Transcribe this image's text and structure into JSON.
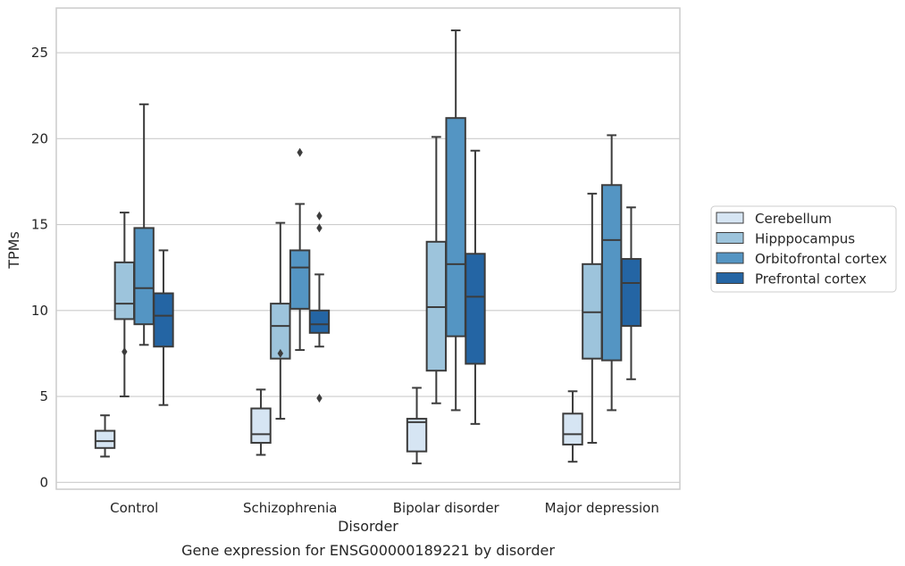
{
  "chart_data": {
    "type": "box",
    "title": "",
    "caption": "Gene expression for ENSG00000189221 by disorder",
    "xlabel": "Disorder",
    "ylabel": "TPMs",
    "ylim": [
      -0.4,
      27.6
    ],
    "yticks": [
      0,
      5,
      10,
      15,
      20,
      25
    ],
    "grid": "horizontal",
    "legend_position": "right",
    "categories": [
      "Control",
      "Schizophrenia",
      "Bipolar disorder",
      "Major depression"
    ],
    "series": [
      {
        "name": "Cerebellum",
        "color": "#d6e5f3",
        "boxes": [
          {
            "whislo": 1.5,
            "q1": 2.0,
            "med": 2.4,
            "q3": 3.0,
            "whishi": 3.9,
            "fliers": []
          },
          {
            "whislo": 1.6,
            "q1": 2.3,
            "med": 2.8,
            "q3": 4.3,
            "whishi": 5.4,
            "fliers": []
          },
          {
            "whislo": 1.1,
            "q1": 1.8,
            "med": 3.5,
            "q3": 3.7,
            "whishi": 5.5,
            "fliers": []
          },
          {
            "whislo": 1.2,
            "q1": 2.2,
            "med": 2.8,
            "q3": 4.0,
            "whishi": 5.3,
            "fliers": []
          }
        ]
      },
      {
        "name": "Hipppocampus",
        "color": "#9dc4dc",
        "boxes": [
          {
            "whislo": 5.0,
            "q1": 9.5,
            "med": 10.4,
            "q3": 12.8,
            "whishi": 15.7,
            "fliers": [
              7.6
            ]
          },
          {
            "whislo": 3.7,
            "q1": 7.2,
            "med": 9.1,
            "q3": 10.4,
            "whishi": 15.1,
            "fliers": [
              7.5
            ]
          },
          {
            "whislo": 4.6,
            "q1": 6.5,
            "med": 10.2,
            "q3": 14.0,
            "whishi": 20.1,
            "fliers": []
          },
          {
            "whislo": 2.3,
            "q1": 7.2,
            "med": 9.9,
            "q3": 12.7,
            "whishi": 16.8,
            "fliers": []
          }
        ]
      },
      {
        "name": "Orbitofrontal cortex",
        "color": "#5495c3",
        "boxes": [
          {
            "whislo": 8.0,
            "q1": 9.2,
            "med": 11.3,
            "q3": 14.8,
            "whishi": 22.0,
            "fliers": []
          },
          {
            "whislo": 7.7,
            "q1": 10.1,
            "med": 12.5,
            "q3": 13.5,
            "whishi": 16.2,
            "fliers": [
              19.2
            ]
          },
          {
            "whislo": 4.2,
            "q1": 8.5,
            "med": 12.7,
            "q3": 21.2,
            "whishi": 26.3,
            "fliers": []
          },
          {
            "whislo": 4.2,
            "q1": 7.1,
            "med": 14.1,
            "q3": 17.3,
            "whishi": 20.2,
            "fliers": []
          }
        ]
      },
      {
        "name": "Prefrontal cortex",
        "color": "#2465a4",
        "boxes": [
          {
            "whislo": 4.5,
            "q1": 7.9,
            "med": 9.7,
            "q3": 11.0,
            "whishi": 13.5,
            "fliers": []
          },
          {
            "whislo": 7.9,
            "q1": 8.7,
            "med": 9.2,
            "q3": 10.0,
            "whishi": 12.1,
            "fliers": [
              15.5,
              14.8,
              4.9
            ]
          },
          {
            "whislo": 3.4,
            "q1": 6.9,
            "med": 10.8,
            "q3": 13.3,
            "whishi": 19.3,
            "fliers": []
          },
          {
            "whislo": 6.0,
            "q1": 9.1,
            "med": 11.6,
            "q3": 13.0,
            "whishi": 16.0,
            "fliers": []
          }
        ]
      }
    ]
  }
}
